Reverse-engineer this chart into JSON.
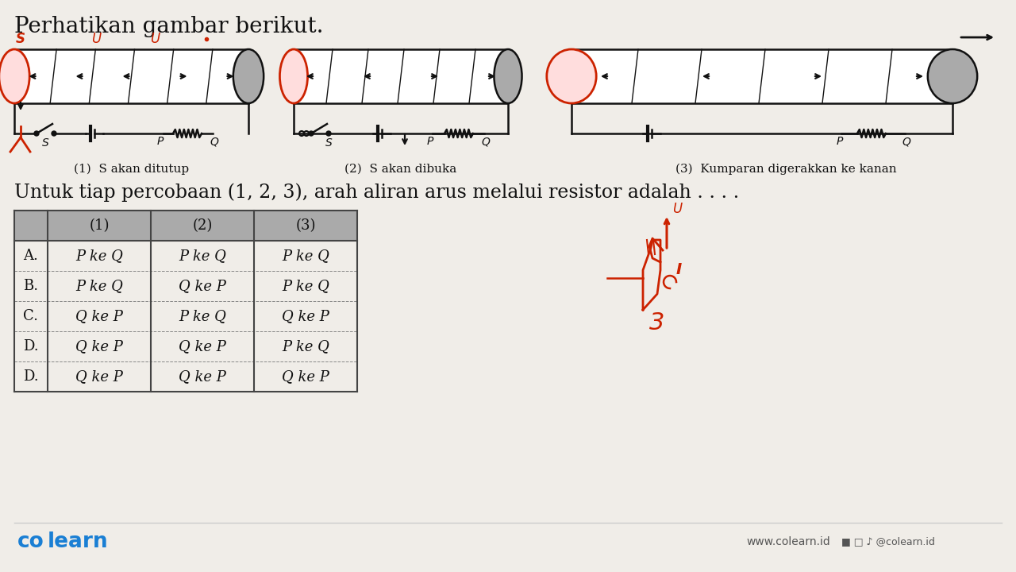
{
  "bg_color": "#f0ede8",
  "title_text": "Perhatikan gambar berikut.",
  "question_text": "Untuk tiap percobaan (1, 2, 3), arah aliran arus melalui resistor adalah . . . .",
  "caption1": "(1)  S akan ditutup",
  "caption2": "(2)  S akan dibuka",
  "caption3": "(3)  Kumparan digerakkan ke kanan",
  "table_headers": [
    "",
    "(1)",
    "(2)",
    "(3)"
  ],
  "table_rows": [
    [
      "A.",
      "P ke Q",
      "P ke Q",
      "P ke Q"
    ],
    [
      "B.",
      "P ke Q",
      "Q ke P",
      "P ke Q"
    ],
    [
      "C.",
      "Q ke P",
      "P ke Q",
      "Q ke P"
    ],
    [
      "D.",
      "Q ke P",
      "Q ke P",
      "P ke Q"
    ],
    [
      "D.",
      "Q ke P",
      "Q ke P",
      "Q ke P"
    ]
  ],
  "colearn_color": "#1a7fd4",
  "text_color": "#1a1a1a",
  "red_color": "#cc2200"
}
